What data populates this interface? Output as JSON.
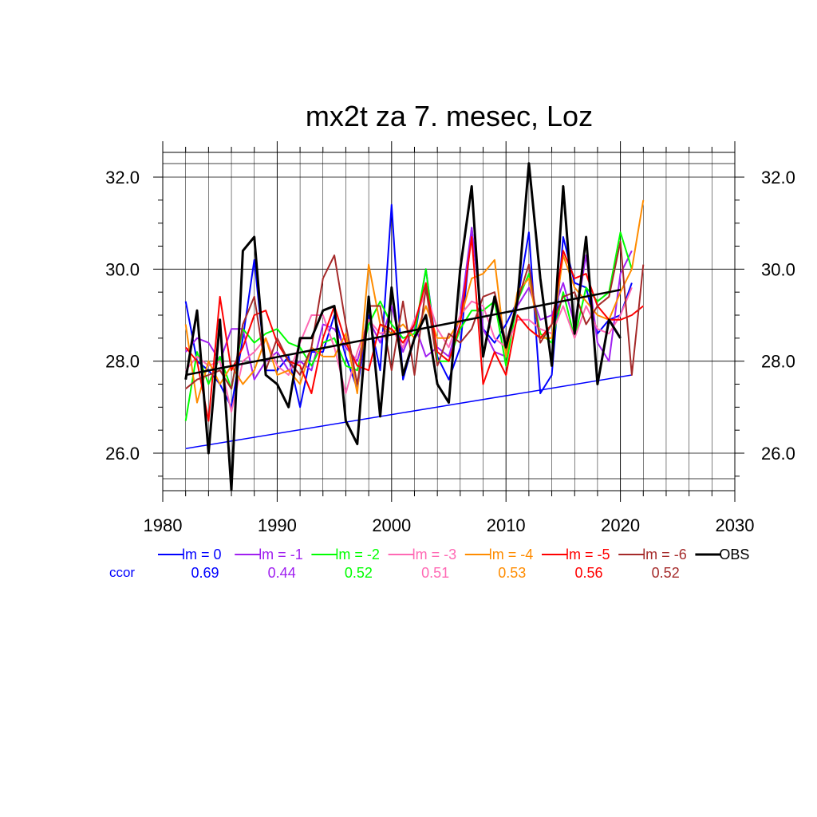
{
  "chart_data": {
    "type": "line",
    "title": "mx2t za 7. mesec, Loz",
    "xlabel": "",
    "ylabel": "",
    "xlim": [
      1980,
      2030
    ],
    "ylim": [
      25.2,
      32.3
    ],
    "x_ticks": [
      1980,
      1990,
      2000,
      2010,
      2020,
      2030
    ],
    "x_tick_labels": [
      "1980",
      "1990",
      "2000",
      "2010",
      "2020",
      "2030"
    ],
    "y_ticks": [
      26,
      28,
      30,
      32
    ],
    "y_tick_labels": [
      "26.0",
      "28.0",
      "30.0",
      "32.0"
    ],
    "grid": true,
    "legend_position": "bottom",
    "ccor_label": "ccor",
    "series": [
      {
        "name": "lm = 0",
        "color": "#0000ff",
        "ccor": "0.69",
        "x_start": 1982,
        "values": [
          29.3,
          28.0,
          27.8,
          27.5,
          27.0,
          28.5,
          30.2,
          27.8,
          27.8,
          28.1,
          27.0,
          28.2,
          28.2,
          29.0,
          28.1,
          27.4,
          29.0,
          27.8,
          31.4,
          27.6,
          28.5,
          30.0,
          28.1,
          27.6,
          28.3,
          30.9,
          28.7,
          28.4,
          28.8,
          29.3,
          30.8,
          27.3,
          27.7,
          30.7,
          29.7,
          29.6,
          28.6,
          28.9,
          29.0,
          29.7
        ],
        "trend": [
          [
            1982,
            26.1
          ],
          [
            2021,
            27.7
          ]
        ]
      },
      {
        "name": "lm = -1",
        "color": "#a020f0",
        "ccor": "0.44",
        "x_start": 1982,
        "values": [
          28.2,
          28.5,
          28.4,
          28.0,
          28.7,
          28.7,
          27.6,
          28.0,
          28.2,
          27.8,
          28.0,
          27.8,
          28.8,
          28.7,
          28.3,
          28.0,
          28.9,
          28.4,
          29.2,
          28.2,
          28.8,
          28.1,
          28.3,
          28.1,
          29.0,
          30.9,
          28.7,
          28.2,
          28.1,
          29.2,
          29.6,
          28.9,
          29.0,
          29.7,
          28.8,
          30.3,
          28.4,
          28.0,
          29.9,
          30.4
        ]
      },
      {
        "name": "lm = -2",
        "color": "#00ff00",
        "ccor": "0.52",
        "x_start": 1982,
        "values": [
          26.7,
          28.2,
          27.5,
          28.1,
          27.4,
          28.7,
          28.4,
          28.6,
          28.7,
          28.4,
          28.3,
          27.9,
          28.4,
          28.5,
          27.9,
          27.8,
          28.8,
          29.3,
          28.8,
          28.5,
          28.6,
          30.0,
          28.0,
          28.0,
          28.7,
          29.1,
          29.1,
          29.3,
          27.9,
          29.3,
          29.9,
          28.6,
          28.4,
          29.5,
          28.5,
          29.6,
          29.3,
          29.5,
          30.8,
          30.0
        ]
      },
      {
        "name": "lm = -3",
        "color": "#ff69b4",
        "ccor": "0.51",
        "x_start": 1982,
        "values": [
          27.8,
          28.1,
          27.9,
          28.0,
          26.9,
          28.0,
          28.2,
          28.5,
          27.9,
          27.7,
          28.4,
          29.0,
          29.0,
          28.3,
          27.3,
          28.2,
          28.9,
          28.6,
          28.7,
          28.3,
          28.9,
          29.5,
          28.7,
          28.3,
          29.0,
          29.3,
          29.2,
          28.5,
          28.3,
          28.9,
          28.9,
          28.7,
          28.6,
          29.2,
          28.5,
          29.2,
          28.7,
          28.6,
          29.0,
          29.6
        ]
      },
      {
        "name": "lm = -4",
        "color": "#ff8c00",
        "ccor": "0.53",
        "x_start": 1982,
        "values": [
          28.8,
          27.1,
          28.0,
          27.5,
          27.9,
          27.5,
          27.8,
          28.5,
          27.7,
          27.8,
          27.5,
          28.3,
          28.1,
          28.1,
          28.6,
          27.3,
          30.1,
          28.8,
          28.6,
          28.8,
          28.5,
          29.2,
          28.5,
          28.5,
          28.9,
          29.8,
          29.9,
          30.2,
          28.1,
          29.5,
          29.8,
          28.5,
          28.5,
          30.3,
          29.6,
          29.3,
          29.0,
          28.9,
          29.5,
          30.0,
          31.5
        ]
      },
      {
        "name": "lm = -5",
        "color": "#ff0000",
        "ccor": "0.56",
        "x_start": 1982,
        "values": [
          28.3,
          28.0,
          26.7,
          29.4,
          27.8,
          28.3,
          29.0,
          29.1,
          28.4,
          28.0,
          27.9,
          27.3,
          28.5,
          29.2,
          28.4,
          27.9,
          27.8,
          28.8,
          28.7,
          28.4,
          28.8,
          29.7,
          28.2,
          28.0,
          28.8,
          30.7,
          27.5,
          28.2,
          27.7,
          29.0,
          28.7,
          28.5,
          28.8,
          30.4,
          29.8,
          29.9,
          29.2,
          28.9,
          28.9,
          29.0,
          29.2
        ]
      },
      {
        "name": "lm = -6",
        "color": "#a52a2a",
        "ccor": "0.52",
        "x_start": 1982,
        "values": [
          27.4,
          27.6,
          27.7,
          27.8,
          27.4,
          28.8,
          29.4,
          27.8,
          28.5,
          28.0,
          27.7,
          28.3,
          29.8,
          30.3,
          28.8,
          27.5,
          29.2,
          29.2,
          27.8,
          29.3,
          27.7,
          29.6,
          27.9,
          28.6,
          28.4,
          28.7,
          29.4,
          29.5,
          28.4,
          29.3,
          30.1,
          28.4,
          28.8,
          29.4,
          29.5,
          28.8,
          29.2,
          29.4,
          30.6,
          27.7,
          30.1
        ]
      },
      {
        "name": "OBS",
        "color": "#000000",
        "ccor": "",
        "x_start": 1982,
        "values": [
          27.6,
          29.1,
          26.0,
          28.9,
          25.2,
          30.4,
          30.7,
          27.7,
          27.5,
          27.0,
          28.5,
          28.5,
          29.1,
          29.2,
          26.7,
          26.2,
          29.4,
          26.8,
          29.6,
          27.7,
          28.5,
          29.0,
          27.5,
          27.1,
          30.0,
          31.8,
          28.1,
          29.4,
          28.3,
          29.3,
          32.3,
          29.8,
          27.9,
          31.8,
          28.6,
          30.7,
          27.5,
          28.9,
          28.5
        ],
        "trend": [
          [
            1982,
            27.7
          ],
          [
            2020,
            29.55
          ]
        ]
      }
    ]
  }
}
